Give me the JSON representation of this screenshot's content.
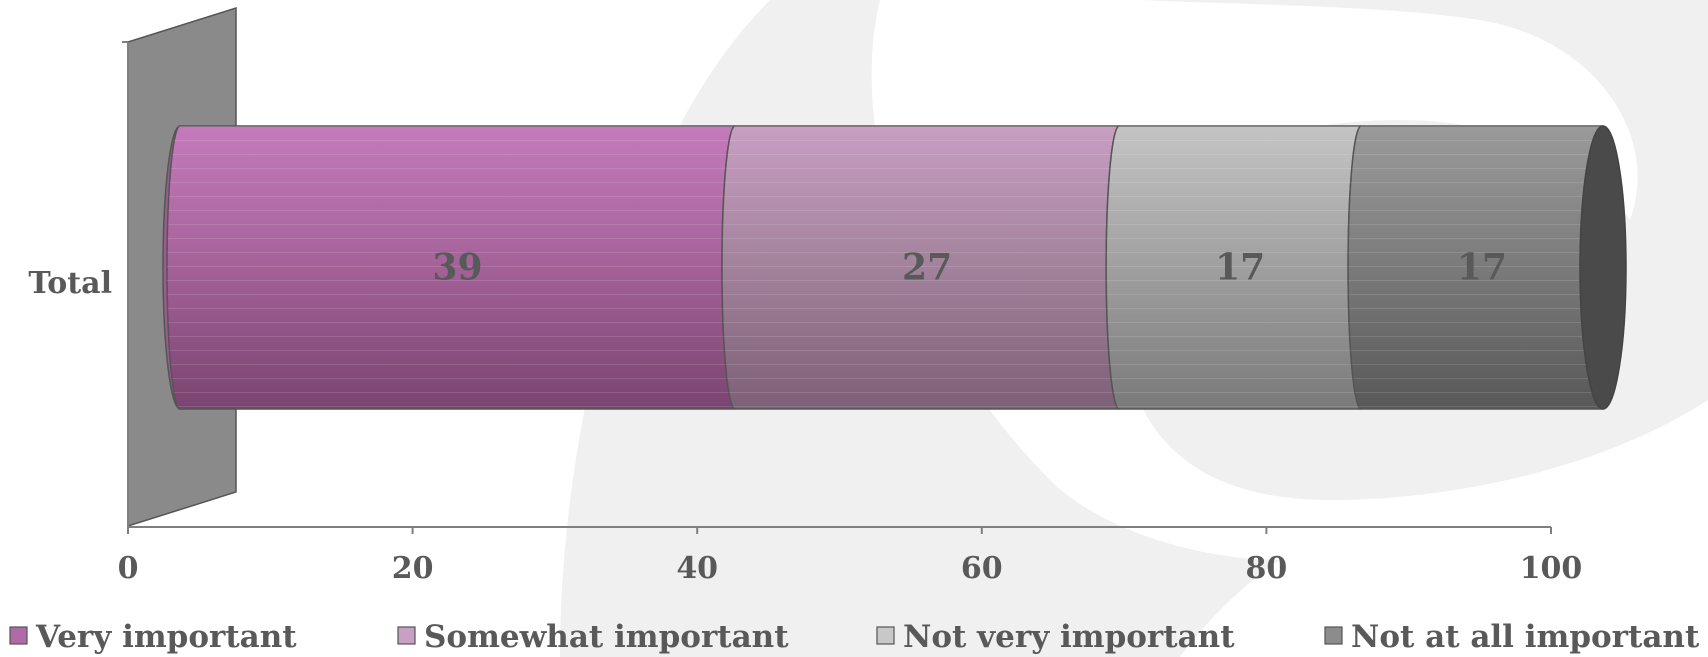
{
  "chart_data": {
    "type": "bar",
    "orientation": "horizontal",
    "stacked": true,
    "style": "3d-cylinder",
    "categories": [
      "Total"
    ],
    "series": [
      {
        "name": "Very important",
        "values": [
          39
        ],
        "color": "#b06aa6"
      },
      {
        "name": "Somewhat important",
        "values": [
          27
        ],
        "color": "#b78fb2"
      },
      {
        "name": "Not very important",
        "values": [
          17
        ],
        "color": "#b3b3b3"
      },
      {
        "name": "Not at all important",
        "values": [
          17
        ],
        "color": "#8c8c8c"
      }
    ],
    "xlim": [
      0,
      100
    ],
    "xticks": [
      "0",
      "20",
      "40",
      "60",
      "80",
      "100"
    ],
    "data_labels": [
      "39",
      "27",
      "17",
      "17"
    ],
    "legend_position": "bottom",
    "grid": false
  }
}
